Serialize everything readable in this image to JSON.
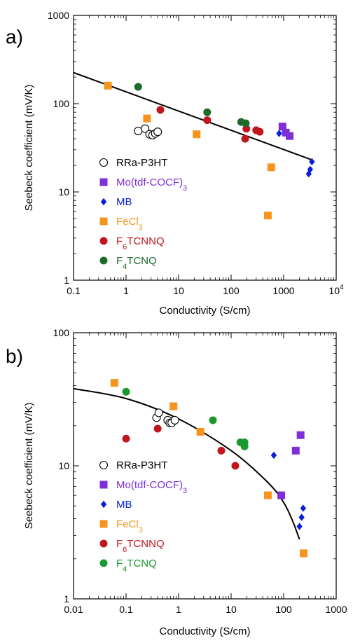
{
  "chart_data": [
    {
      "panel_label": "a)",
      "type": "scatter",
      "xscale": "log",
      "yscale": "log",
      "xlim": [
        0.1,
        10000
      ],
      "ylim": [
        1,
        1000
      ],
      "xlabel": "Conductivity (S/cm)",
      "ylabel": "Seebeck coefficient (mV/K)",
      "xticks": [
        {
          "value": 0.1,
          "label": "0.1"
        },
        {
          "value": 1,
          "label": "1"
        },
        {
          "value": 10,
          "label": "10"
        },
        {
          "value": 100,
          "label": "100"
        },
        {
          "value": 1000,
          "label": "1000"
        },
        {
          "value": 10000,
          "label": "10",
          "sup": "4"
        }
      ],
      "yticks": [
        {
          "value": 1,
          "label": "1"
        },
        {
          "value": 10,
          "label": "10"
        },
        {
          "value": 100,
          "label": "100"
        },
        {
          "value": 1000,
          "label": "1000"
        }
      ],
      "grid": false,
      "legend_position": "left",
      "fit_line": {
        "type": "power",
        "x": [
          0.1,
          3500
        ],
        "y": [
          225,
          23
        ]
      },
      "series": [
        {
          "name": "RRa-P3HT",
          "name_parts": [
            [
              "RRa-P3HT",
              ""
            ]
          ],
          "marker": "circle-open",
          "color": "#000000",
          "x": [
            1.7,
            2.3,
            2.8,
            3.2,
            3.6,
            4.0
          ],
          "y": [
            49,
            52,
            45,
            44,
            46,
            48
          ]
        },
        {
          "name": "Mo(tdf-COCF3)3",
          "name_parts": [
            [
              "Mo(tdf-COCF",
              ""
            ],
            [
              ")",
              "3"
            ],
            [
              "3",
              "sub"
            ]
          ],
          "marker": "square",
          "color": "#7e2fd6",
          "x": [
            950,
            1100,
            1300
          ],
          "y": [
            55,
            47,
            43
          ]
        },
        {
          "name": "MB",
          "name_parts": [
            [
              "MB",
              ""
            ]
          ],
          "marker": "diamond",
          "color": "#0a1ed6",
          "x": [
            820,
            3000,
            3200,
            3450
          ],
          "y": [
            46,
            16,
            18,
            22
          ]
        },
        {
          "name": "FeCl3",
          "name_parts": [
            [
              "FeCl",
              ""
            ],
            [
              "3",
              "sub"
            ]
          ],
          "marker": "square",
          "color": "#f7941d",
          "x": [
            0.45,
            2.5,
            22,
            580,
            500
          ],
          "y": [
            160,
            68,
            45,
            19,
            5.4
          ]
        },
        {
          "name": "F6TCNNQ",
          "name_parts": [
            [
              "F",
              ""
            ],
            [
              "6",
              "sub"
            ],
            [
              "TCNNQ",
              ""
            ]
          ],
          "marker": "circle",
          "color": "#c0161c",
          "x": [
            4.5,
            35,
            185,
            195,
            300,
            350
          ],
          "y": [
            85,
            65,
            40,
            52,
            50,
            48
          ]
        },
        {
          "name": "F4TCNQ",
          "name_parts": [
            [
              "F",
              ""
            ],
            [
              "4",
              "sub"
            ],
            [
              "TCNQ",
              ""
            ]
          ],
          "marker": "circle",
          "color": "#1b6b2c",
          "x": [
            1.7,
            35,
            155,
            190
          ],
          "y": [
            155,
            80,
            62,
            60
          ]
        }
      ]
    },
    {
      "panel_label": "b)",
      "type": "scatter",
      "xscale": "log",
      "yscale": "log",
      "xlim": [
        0.01,
        1000
      ],
      "ylim": [
        1,
        100
      ],
      "xlabel": "Conductivity (S/cm)",
      "ylabel": "Seebeck coefficient (mV/K)",
      "xticks": [
        {
          "value": 0.01,
          "label": "0.01"
        },
        {
          "value": 0.1,
          "label": "0.1"
        },
        {
          "value": 1,
          "label": "1"
        },
        {
          "value": 10,
          "label": "10"
        },
        {
          "value": 100,
          "label": "100"
        },
        {
          "value": 1000,
          "label": "1000"
        }
      ],
      "yticks": [
        {
          "value": 1,
          "label": "1"
        },
        {
          "value": 10,
          "label": "10"
        },
        {
          "value": 100,
          "label": "100"
        }
      ],
      "grid": false,
      "legend_position": "left",
      "fit_line": {
        "type": "curve",
        "x": [
          0.01,
          0.1,
          1,
          10,
          50,
          100,
          150,
          200
        ],
        "y": [
          38,
          32,
          22.5,
          13,
          7.5,
          5.3,
          3.8,
          2.8
        ]
      },
      "series": [
        {
          "name": "RRa-P3HT",
          "name_parts": [
            [
              "RRa-P3HT",
              ""
            ]
          ],
          "marker": "circle-open",
          "color": "#000000",
          "x": [
            0.38,
            0.42,
            0.62,
            0.68,
            0.74,
            0.85
          ],
          "y": [
            23,
            25,
            22,
            21,
            21,
            22
          ]
        },
        {
          "name": "Mo(tdf-COCF3)3",
          "name_parts": [
            [
              "Mo(tdf-COCF",
              ""
            ],
            [
              ")",
              "3"
            ],
            [
              "3",
              "sub"
            ]
          ],
          "marker": "square",
          "color": "#7e2fd6",
          "x": [
            90,
            170,
            210
          ],
          "y": [
            6,
            13,
            17
          ]
        },
        {
          "name": "MB",
          "name_parts": [
            [
              "MB",
              ""
            ]
          ],
          "marker": "diamond",
          "color": "#0a1ed6",
          "x": [
            65,
            200,
            220,
            235
          ],
          "y": [
            12,
            3.5,
            4.1,
            4.8
          ]
        },
        {
          "name": "FeCl3",
          "name_parts": [
            [
              "FeCl",
              ""
            ],
            [
              "3",
              "sub"
            ]
          ],
          "marker": "square",
          "color": "#f7941d",
          "x": [
            0.06,
            0.8,
            2.6,
            50,
            240
          ],
          "y": [
            42,
            28,
            18,
            6,
            2.2
          ]
        },
        {
          "name": "F6TCNNQ",
          "name_parts": [
            [
              "F",
              ""
            ],
            [
              "6",
              "sub"
            ],
            [
              "TCNNQ",
              ""
            ]
          ],
          "marker": "circle",
          "color": "#c0161c",
          "x": [
            0.1,
            0.4,
            6.5,
            12
          ],
          "y": [
            16,
            19,
            13,
            10
          ]
        },
        {
          "name": "F4TCNQ",
          "name_parts": [
            [
              "F",
              ""
            ],
            [
              "4",
              "sub"
            ],
            [
              "TCNQ",
              ""
            ]
          ],
          "marker": "circle",
          "color": "#1a9a2e",
          "x": [
            0.1,
            4.5,
            15,
            18,
            18
          ],
          "y": [
            36,
            22,
            15,
            14,
            15
          ]
        }
      ]
    }
  ]
}
